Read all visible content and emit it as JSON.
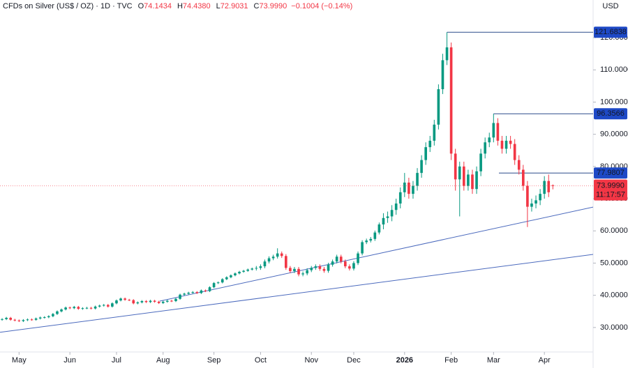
{
  "header": {
    "title": "CFDs on Silver (US$ / OZ) · 1D · TVC",
    "fields": [
      {
        "label": "O",
        "value": "74.1434"
      },
      {
        "label": "H",
        "value": "74.4380"
      },
      {
        "label": "L",
        "value": "72.9031"
      },
      {
        "label": "C",
        "value": "73.9990"
      }
    ],
    "change": "−0.1004 (−0.14%)",
    "currency": "USD"
  },
  "chart_data": {
    "type": "candlestick",
    "up_color": "#089981",
    "down_color": "#f23645",
    "xlim": [
      -0.5,
      139.5
    ],
    "ylim": [
      22.4,
      131.7
    ],
    "xticks": [
      {
        "value": 4,
        "label": "May"
      },
      {
        "value": 16,
        "label": "Jun"
      },
      {
        "value": 27,
        "label": "Jul"
      },
      {
        "value": 38,
        "label": "Aug"
      },
      {
        "value": 50,
        "label": "Sep"
      },
      {
        "value": 61,
        "label": "Oct"
      },
      {
        "value": 73,
        "label": "Nov"
      },
      {
        "value": 83,
        "label": "Dec"
      },
      {
        "value": 95,
        "label": "2026"
      },
      {
        "value": 106,
        "label": "Feb"
      },
      {
        "value": 116,
        "label": "Mar"
      },
      {
        "value": 128,
        "label": "Apr"
      }
    ],
    "yticks": [
      {
        "value": 30,
        "label": "30.0000"
      },
      {
        "value": 40,
        "label": "40.0000"
      },
      {
        "value": 50,
        "label": "50.0000"
      },
      {
        "value": 60,
        "label": "60.0000"
      },
      {
        "value": 70,
        "label": "70.0000"
      },
      {
        "value": 80,
        "label": "80.0000"
      },
      {
        "value": 90,
        "label": "90.0000"
      },
      {
        "value": 100,
        "label": "100.0000"
      },
      {
        "value": 110,
        "label": "110.0000"
      },
      {
        "value": 120,
        "label": "120.0000"
      }
    ],
    "open": [
      32.4,
      32.6,
      33.0,
      32.4,
      32.2,
      32.0,
      32.3,
      32.5,
      32.4,
      32.8,
      33.1,
      33.2,
      33.5,
      34.2,
      35.0,
      35.6,
      36.2,
      36.0,
      36.4,
      35.8,
      36.0,
      36.1,
      35.9,
      36.5,
      36.8,
      37.0,
      36.5,
      37.5,
      38.4,
      39.0,
      38.6,
      38.5,
      37.5,
      37.8,
      38.2,
      37.9,
      38.3,
      38.0,
      37.6,
      38.0,
      38.3,
      38.2,
      38.9,
      40.2,
      40.5,
      40.8,
      41.0,
      40.7,
      41.5,
      41.3,
      42.5,
      43.8,
      44.0,
      45.0,
      45.6,
      46.2,
      46.8,
      47.3,
      47.6,
      48.0,
      48.3,
      48.5,
      49.0,
      50.5,
      51.5,
      52.0,
      53.0,
      52.2,
      48.5,
      47.5,
      48.2,
      46.5,
      46.8,
      47.8,
      48.5,
      49.0,
      48.2,
      47.6,
      49.5,
      50.5,
      52.0,
      50.5,
      49.0,
      48.3,
      50.0,
      53.0,
      56.5,
      57.0,
      57.5,
      59.5,
      62.0,
      64.0,
      64.5,
      66.5,
      68.5,
      72.0,
      75.0,
      71.5,
      74.0,
      78.0,
      82.0,
      86.0,
      88.0,
      93.0,
      104.0,
      113.0,
      117.0,
      84.0,
      76.0,
      80.0,
      74.0,
      77.5,
      73.0,
      78.5,
      84.0,
      87.5,
      89.0,
      93.5,
      88.0,
      85.5,
      88.0,
      87.0,
      82.0,
      79.0,
      74.0,
      67.5,
      68.5,
      69.5,
      71.5,
      75.5,
      74.1434
    ],
    "high": [
      32.9,
      33.3,
      33.3,
      32.7,
      32.5,
      32.6,
      32.8,
      32.8,
      33.1,
      33.4,
      33.5,
      33.8,
      34.5,
      35.3,
      35.9,
      36.5,
      36.5,
      36.7,
      36.7,
      36.3,
      36.4,
      36.4,
      36.8,
      37.1,
      37.3,
      37.3,
      37.8,
      38.7,
      39.3,
      39.3,
      38.9,
      38.8,
      38.1,
      38.5,
      38.5,
      38.6,
      38.6,
      38.3,
      38.3,
      38.6,
      38.6,
      39.2,
      40.5,
      40.8,
      41.1,
      41.3,
      41.3,
      41.8,
      41.8,
      42.8,
      44.1,
      44.3,
      45.3,
      45.9,
      46.5,
      47.1,
      47.6,
      47.9,
      48.3,
      48.6,
      49.1,
      49.6,
      51.1,
      52.1,
      52.6,
      54.6,
      53.6,
      52.8,
      49.1,
      48.8,
      48.8,
      47.4,
      48.4,
      49.1,
      49.6,
      49.6,
      48.8,
      50.1,
      51.1,
      52.6,
      52.6,
      51.1,
      49.6,
      50.6,
      53.6,
      57.1,
      57.6,
      58.1,
      60.1,
      62.6,
      65.5,
      66.0,
      68.0,
      70.0,
      73.5,
      78.0,
      76.5,
      75.5,
      79.5,
      83.5,
      87.5,
      89.5,
      94.5,
      105.5,
      115.0,
      121.6838,
      118.5,
      85.5,
      81.5,
      81.5,
      79.0,
      79.0,
      80.0,
      85.5,
      89.0,
      90.5,
      96.3566,
      95.0,
      89.5,
      89.5,
      89.5,
      88.5,
      83.5,
      80.5,
      75.5,
      70.0,
      71.0,
      73.0,
      77.0,
      77.5,
      74.438
    ],
    "low": [
      32.1,
      32.3,
      32.1,
      31.9,
      31.7,
      31.7,
      32.0,
      32.1,
      32.1,
      32.5,
      32.8,
      32.9,
      33.2,
      33.9,
      34.7,
      35.3,
      35.7,
      35.7,
      35.5,
      35.5,
      35.7,
      35.6,
      35.6,
      36.2,
      36.5,
      36.2,
      36.2,
      37.2,
      38.1,
      38.3,
      38.2,
      37.2,
      37.2,
      37.5,
      37.6,
      37.6,
      37.7,
      37.3,
      37.3,
      37.7,
      37.9,
      37.9,
      38.6,
      39.9,
      40.2,
      40.5,
      40.4,
      40.4,
      41.0,
      41.0,
      42.2,
      43.5,
      43.7,
      44.7,
      45.3,
      45.9,
      46.5,
      47.0,
      47.3,
      47.7,
      47.7,
      47.9,
      48.4,
      49.9,
      50.9,
      51.4,
      51.6,
      47.9,
      46.9,
      46.9,
      45.9,
      45.9,
      46.2,
      47.2,
      47.9,
      47.6,
      47.0,
      47.0,
      48.9,
      49.9,
      49.9,
      48.4,
      47.7,
      47.7,
      49.4,
      52.4,
      55.9,
      56.4,
      56.9,
      58.9,
      60.5,
      62.5,
      63.0,
      65.0,
      67.0,
      70.5,
      70.0,
      70.0,
      72.5,
      76.5,
      80.5,
      84.5,
      86.5,
      91.5,
      102.5,
      111.5,
      82.0,
      72.5,
      64.5,
      72.5,
      72.5,
      71.5,
      71.5,
      77.0,
      82.5,
      86.0,
      87.5,
      86.5,
      84.0,
      84.0,
      85.5,
      80.5,
      77.5,
      72.5,
      61.2,
      66.0,
      67.0,
      68.0,
      70.0,
      70.5,
      72.9031
    ],
    "close": [
      32.6,
      33.0,
      32.4,
      32.2,
      32.0,
      32.3,
      32.5,
      32.4,
      32.8,
      33.1,
      33.2,
      33.5,
      34.2,
      35.0,
      35.6,
      36.2,
      36.0,
      36.4,
      35.8,
      36.0,
      36.1,
      35.9,
      36.5,
      36.8,
      37.0,
      36.5,
      37.5,
      38.4,
      39.0,
      38.6,
      38.5,
      37.5,
      37.8,
      38.2,
      37.9,
      38.3,
      38.0,
      37.6,
      38.0,
      38.3,
      38.2,
      38.9,
      40.2,
      40.5,
      40.8,
      41.0,
      40.7,
      41.5,
      41.3,
      42.5,
      43.8,
      44.0,
      45.0,
      45.6,
      46.2,
      46.8,
      47.3,
      47.6,
      48.0,
      48.3,
      48.5,
      49.0,
      50.5,
      51.5,
      52.0,
      53.0,
      52.2,
      48.5,
      47.5,
      48.2,
      46.5,
      46.8,
      47.8,
      48.5,
      49.0,
      48.2,
      47.6,
      49.5,
      50.5,
      52.0,
      50.5,
      49.0,
      48.3,
      50.0,
      53.0,
      56.5,
      57.0,
      57.5,
      59.5,
      62.0,
      64.0,
      64.5,
      66.5,
      68.5,
      72.0,
      75.0,
      71.5,
      74.0,
      78.0,
      82.0,
      86.0,
      88.0,
      93.0,
      104.0,
      113.0,
      117.0,
      84.0,
      76.0,
      80.0,
      74.0,
      77.5,
      73.0,
      78.5,
      84.0,
      87.5,
      89.0,
      93.5,
      88.0,
      85.5,
      88.0,
      87.0,
      82.0,
      79.0,
      74.0,
      67.5,
      68.5,
      69.5,
      71.5,
      75.5,
      72.0,
      73.999
    ],
    "levels": [
      {
        "value": 121.6838,
        "label": "121.6838"
      },
      {
        "value": 96.3566,
        "label": "96.3566"
      },
      {
        "value": 77.9807,
        "label": "77.9807"
      }
    ],
    "trendlines": [
      {
        "x": [
          37.2,
          139.5
        ],
        "y": [
          38.2,
          67.4
        ]
      },
      {
        "x": [
          -0.5,
          139.5
        ],
        "y": [
          28.5,
          52.7
        ]
      }
    ],
    "last_price": {
      "value": 73.999,
      "label": "73.9990"
    },
    "countdown": "11:17:57"
  }
}
